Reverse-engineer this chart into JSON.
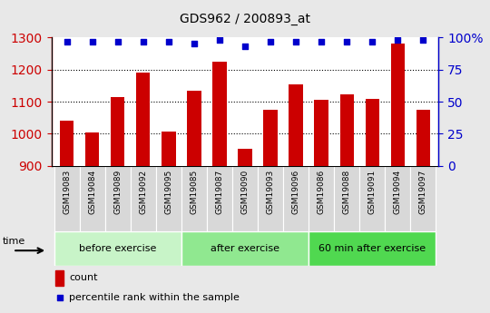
{
  "title": "GDS962 / 200893_at",
  "categories": [
    "GSM19083",
    "GSM19084",
    "GSM19089",
    "GSM19092",
    "GSM19095",
    "GSM19085",
    "GSM19087",
    "GSM19090",
    "GSM19093",
    "GSM19096",
    "GSM19086",
    "GSM19088",
    "GSM19091",
    "GSM19094",
    "GSM19097"
  ],
  "bar_values": [
    1040,
    1003,
    1115,
    1190,
    1007,
    1133,
    1224,
    952,
    1075,
    1155,
    1107,
    1123,
    1108,
    1280,
    1075
  ],
  "percentile_values": [
    97,
    97,
    97,
    97,
    97,
    95,
    98,
    93,
    97,
    97,
    97,
    97,
    97,
    98,
    98
  ],
  "group_labels": [
    "before exercise",
    "after exercise",
    "60 min after exercise"
  ],
  "group_starts": [
    0,
    5,
    10
  ],
  "group_ends": [
    5,
    10,
    15
  ],
  "group_colors": [
    "#c8f4c8",
    "#90e890",
    "#50d850"
  ],
  "ylim_left": [
    900,
    1300
  ],
  "ylim_right": [
    0,
    100
  ],
  "yticks_left": [
    900,
    1000,
    1100,
    1200,
    1300
  ],
  "yticks_right": [
    0,
    25,
    50,
    75,
    100
  ],
  "bar_color": "#cc0000",
  "dot_color": "#0000cc",
  "bg_color": "#e8e8e8",
  "plot_bg": "#ffffff",
  "left_axis_color": "#cc0000",
  "right_axis_color": "#0000cc",
  "legend_count_label": "count",
  "legend_percentile_label": "percentile rank within the sample"
}
